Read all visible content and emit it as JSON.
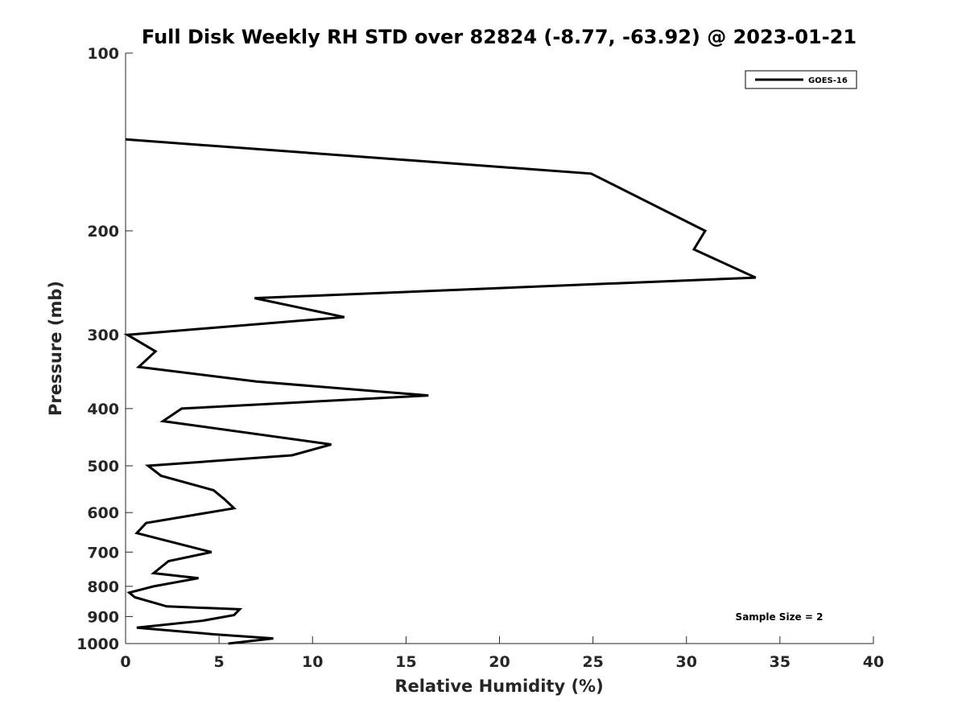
{
  "chart_data": {
    "type": "line",
    "title": "Full Disk Weekly RH STD over 82824 (-8.77, -63.92) @ 2023-01-21",
    "xlabel": "Relative Humidity (%)",
    "ylabel": "Pressure (mb)",
    "xlim": [
      0,
      40
    ],
    "ylim": [
      100,
      1000
    ],
    "y_scale": "log",
    "y_reversed": true,
    "x_ticks": [
      0,
      5,
      10,
      15,
      20,
      25,
      30,
      35,
      40
    ],
    "y_ticks": [
      100,
      200,
      300,
      400,
      500,
      600,
      700,
      800,
      900,
      1000
    ],
    "grid": false,
    "legend_position": "top-right",
    "annotation": "Sample Size = 2",
    "series": [
      {
        "name": "GOES-16",
        "color": "#000000",
        "points": [
          {
            "x": 0.0,
            "y": 140
          },
          {
            "x": 24.9,
            "y": 160
          },
          {
            "x": 31.0,
            "y": 200
          },
          {
            "x": 30.4,
            "y": 215
          },
          {
            "x": 33.7,
            "y": 240
          },
          {
            "x": 6.9,
            "y": 260
          },
          {
            "x": 11.7,
            "y": 280
          },
          {
            "x": 0.1,
            "y": 300
          },
          {
            "x": 1.6,
            "y": 320
          },
          {
            "x": 0.7,
            "y": 340
          },
          {
            "x": 7.0,
            "y": 360
          },
          {
            "x": 16.2,
            "y": 380
          },
          {
            "x": 3.0,
            "y": 400
          },
          {
            "x": 2.0,
            "y": 420
          },
          {
            "x": 11.0,
            "y": 460
          },
          {
            "x": 8.9,
            "y": 480
          },
          {
            "x": 1.2,
            "y": 500
          },
          {
            "x": 1.9,
            "y": 520
          },
          {
            "x": 4.7,
            "y": 550
          },
          {
            "x": 5.3,
            "y": 570
          },
          {
            "x": 5.8,
            "y": 590
          },
          {
            "x": 1.1,
            "y": 625
          },
          {
            "x": 0.6,
            "y": 650
          },
          {
            "x": 3.8,
            "y": 690
          },
          {
            "x": 4.6,
            "y": 700
          },
          {
            "x": 2.3,
            "y": 725
          },
          {
            "x": 1.5,
            "y": 760
          },
          {
            "x": 3.9,
            "y": 775
          },
          {
            "x": 1.5,
            "y": 800
          },
          {
            "x": 0.2,
            "y": 820
          },
          {
            "x": 0.5,
            "y": 835
          },
          {
            "x": 2.2,
            "y": 865
          },
          {
            "x": 6.1,
            "y": 875
          },
          {
            "x": 5.8,
            "y": 895
          },
          {
            "x": 4.1,
            "y": 915
          },
          {
            "x": 0.6,
            "y": 940
          },
          {
            "x": 3.1,
            "y": 955
          },
          {
            "x": 4.8,
            "y": 965
          },
          {
            "x": 7.9,
            "y": 980
          },
          {
            "x": 5.5,
            "y": 1000
          }
        ]
      }
    ]
  }
}
